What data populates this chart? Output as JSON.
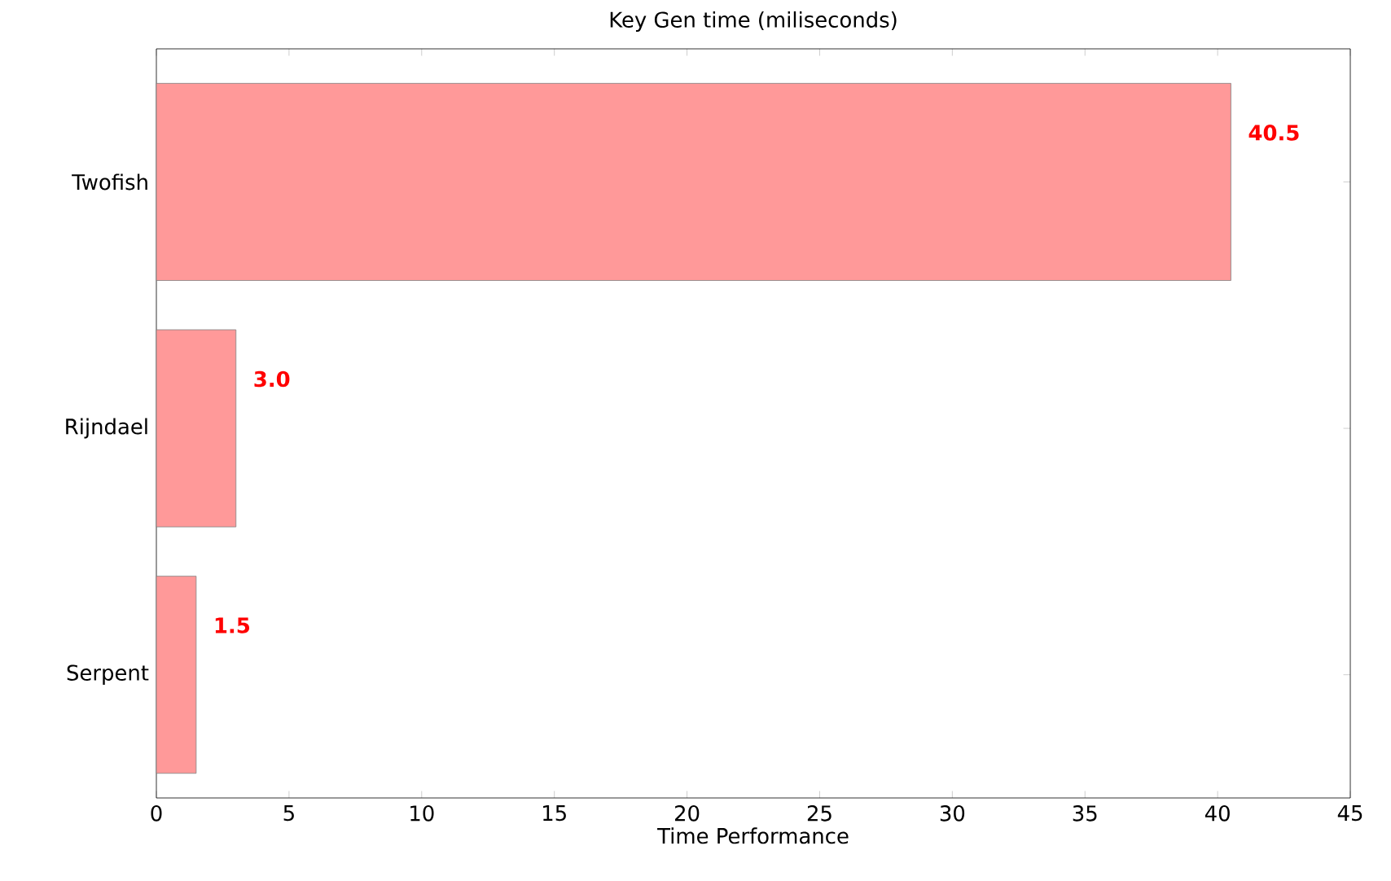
{
  "chart_data": {
    "type": "bar",
    "orientation": "horizontal",
    "title": "Key Gen time (miliseconds)",
    "xlabel": "Time Performance",
    "categories": [
      "Twofish",
      "Rijndael",
      "Serpent"
    ],
    "values": [
      40.5,
      3.0,
      1.5
    ],
    "value_labels": [
      "40.5",
      "3.0",
      "1.5"
    ],
    "color": "#ff9999",
    "xlim": [
      0,
      45
    ],
    "xticks": [
      0,
      5,
      10,
      15,
      20,
      25,
      30,
      35,
      40,
      45
    ],
    "grid": false
  }
}
